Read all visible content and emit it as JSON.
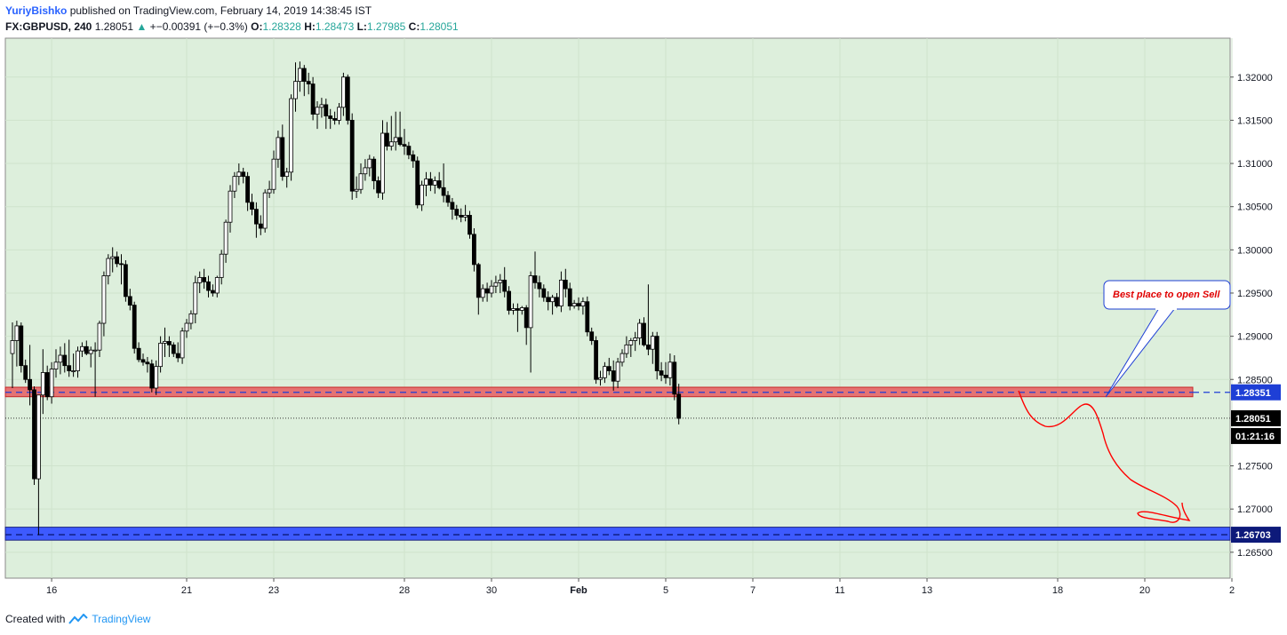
{
  "header": {
    "author": "YuriyBishko",
    "published_text": "published on TradingView.com, February 14, 2019 14:38:45 IST",
    "symbol": "FX:GBPUSD, 240",
    "last": "1.28051",
    "change": "+−0.00391 (+−0.3%)",
    "o_label": "O:",
    "o_val": "1.28328",
    "h_label": "H:",
    "h_val": "1.28473",
    "l_label": "L:",
    "l_val": "1.27985",
    "c_label": "C:",
    "c_val": "1.28051"
  },
  "footer": {
    "created_with": "Created with",
    "brand": "TradingView"
  },
  "colors": {
    "background": "#ddefdc",
    "candle": "#000000",
    "resistance_zone": "#e57373",
    "resistance_line": "#1e3fd6",
    "support_zone": "#3d5afe",
    "support_line": "#0d1a7a",
    "arrow": "#ff0000",
    "callout_text": "#e00000"
  },
  "chart_data": {
    "type": "candlestick",
    "symbol": "GBPUSD",
    "timeframe": "240",
    "ylim": [
      1.262,
      1.3245
    ],
    "y_ticks": [
      "1.32000",
      "1.31500",
      "1.31000",
      "1.30500",
      "1.30000",
      "1.29500",
      "1.29000",
      "1.28500",
      "1.27500",
      "1.27000",
      "1.26500"
    ],
    "y_tick_values": [
      1.32,
      1.315,
      1.31,
      1.305,
      1.3,
      1.295,
      1.29,
      1.285,
      1.275,
      1.27,
      1.265
    ],
    "x_ticks": [
      "16",
      "21",
      "23",
      "28",
      "30",
      "Feb",
      "5",
      "7",
      "11",
      "13",
      "18",
      "20",
      "2"
    ],
    "x_tick_index": [
      9,
      40,
      60,
      90,
      110,
      130,
      150,
      170,
      190,
      210,
      240,
      260,
      280
    ],
    "price_labels": {
      "resistance": "1.28351",
      "last": "1.28051",
      "countdown": "01:21:16",
      "support": "1.26703"
    },
    "resistance_zone": [
      1.283,
      1.2841
    ],
    "resistance_level": 1.28351,
    "support_zone": [
      1.2664,
      1.2679
    ],
    "support_level": 1.26703,
    "last_price": 1.28051,
    "annotation": "Best place to open Sell",
    "candles": [
      [
        1.288,
        1.2916,
        1.284,
        1.2895
      ],
      [
        1.2895,
        1.2918,
        1.2865,
        1.2912
      ],
      [
        1.2912,
        1.2916,
        1.2858,
        1.2866
      ],
      [
        1.2866,
        1.2873,
        1.2846,
        1.285
      ],
      [
        1.285,
        1.289,
        1.282,
        1.2838
      ],
      [
        1.2838,
        1.2842,
        1.2728,
        1.2735
      ],
      [
        1.2735,
        1.2832,
        1.267,
        1.2832
      ],
      [
        1.2832,
        1.2885,
        1.281,
        1.2858
      ],
      [
        1.2858,
        1.2866,
        1.2826,
        1.283
      ],
      [
        1.283,
        1.287,
        1.2822,
        1.2862
      ],
      [
        1.2862,
        1.2885,
        1.2852,
        1.287
      ],
      [
        1.287,
        1.2888,
        1.2856,
        1.2878
      ],
      [
        1.2878,
        1.2892,
        1.2858,
        1.2866
      ],
      [
        1.2866,
        1.2896,
        1.2853,
        1.286
      ],
      [
        1.286,
        1.288,
        1.2853,
        1.286
      ],
      [
        1.286,
        1.2888,
        1.2852,
        1.2883
      ],
      [
        1.2883,
        1.2893,
        1.2876,
        1.2888
      ],
      [
        1.2888,
        1.2895,
        1.2878,
        1.288
      ],
      [
        1.288,
        1.2888,
        1.2864,
        1.2884
      ],
      [
        1.2884,
        1.2893,
        1.283,
        1.2884
      ],
      [
        1.2884,
        1.2918,
        1.2876,
        1.2915
      ],
      [
        1.2915,
        1.2975,
        1.29,
        1.297
      ],
      [
        1.297,
        1.2995,
        1.296,
        1.299
      ],
      [
        1.299,
        1.3003,
        1.2974,
        1.2992
      ],
      [
        1.2992,
        1.2998,
        1.298,
        1.2984
      ],
      [
        1.2984,
        1.2995,
        1.296,
        1.2983
      ],
      [
        1.2983,
        1.2988,
        1.294,
        1.2946
      ],
      [
        1.2946,
        1.2955,
        1.293,
        1.2936
      ],
      [
        1.2936,
        1.294,
        1.288,
        1.2886
      ],
      [
        1.2886,
        1.2893,
        1.287,
        1.2873
      ],
      [
        1.2873,
        1.288,
        1.2866,
        1.287
      ],
      [
        1.287,
        1.2876,
        1.2858,
        1.2868
      ],
      [
        1.2868,
        1.2873,
        1.2835,
        1.284
      ],
      [
        1.284,
        1.2872,
        1.2832,
        1.2865
      ],
      [
        1.2865,
        1.29,
        1.2858,
        1.2892
      ],
      [
        1.2892,
        1.291,
        1.2876,
        1.2894
      ],
      [
        1.2894,
        1.29,
        1.2876,
        1.289
      ],
      [
        1.289,
        1.2893,
        1.2876,
        1.288
      ],
      [
        1.288,
        1.2893,
        1.287,
        1.2875
      ],
      [
        1.2875,
        1.291,
        1.2868,
        1.2906
      ],
      [
        1.2906,
        1.292,
        1.2898,
        1.2915
      ],
      [
        1.2915,
        1.293,
        1.2908,
        1.2926
      ],
      [
        1.2926,
        1.297,
        1.2915,
        1.2962
      ],
      [
        1.2962,
        1.2975,
        1.295,
        1.2968
      ],
      [
        1.2968,
        1.2978,
        1.2955,
        1.2963
      ],
      [
        1.2963,
        1.297,
        1.2945,
        1.2953
      ],
      [
        1.2953,
        1.296,
        1.2946,
        1.295
      ],
      [
        1.295,
        1.297,
        1.2945,
        1.2968
      ],
      [
        1.2968,
        1.3,
        1.296,
        1.2995
      ],
      [
        1.2995,
        1.3035,
        1.2985,
        1.3032
      ],
      [
        1.3032,
        1.3075,
        1.302,
        1.3068
      ],
      [
        1.3068,
        1.309,
        1.306,
        1.3085
      ],
      [
        1.3085,
        1.31,
        1.3075,
        1.309
      ],
      [
        1.309,
        1.3095,
        1.3077,
        1.3085
      ],
      [
        1.3085,
        1.309,
        1.3045,
        1.3055
      ],
      [
        1.3055,
        1.3065,
        1.304,
        1.3047
      ],
      [
        1.3047,
        1.3055,
        1.3014,
        1.303
      ],
      [
        1.303,
        1.304,
        1.3017,
        1.3025
      ],
      [
        1.3025,
        1.307,
        1.302,
        1.3066
      ],
      [
        1.3066,
        1.308,
        1.306,
        1.307
      ],
      [
        1.307,
        1.3115,
        1.3065,
        1.3105
      ],
      [
        1.3105,
        1.3138,
        1.3095,
        1.313
      ],
      [
        1.313,
        1.3145,
        1.308,
        1.3085
      ],
      [
        1.3085,
        1.3095,
        1.3072,
        1.309
      ],
      [
        1.309,
        1.318,
        1.308,
        1.3175
      ],
      [
        1.3175,
        1.3217,
        1.316,
        1.3195
      ],
      [
        1.3195,
        1.3218,
        1.3183,
        1.321
      ],
      [
        1.321,
        1.3214,
        1.3178,
        1.3195
      ],
      [
        1.3195,
        1.3205,
        1.318,
        1.3192
      ],
      [
        1.3192,
        1.32,
        1.315,
        1.3157
      ],
      [
        1.3157,
        1.3172,
        1.314,
        1.3165
      ],
      [
        1.3165,
        1.3176,
        1.3153,
        1.3168
      ],
      [
        1.3168,
        1.3175,
        1.314,
        1.3155
      ],
      [
        1.3155,
        1.3163,
        1.314,
        1.3152
      ],
      [
        1.3152,
        1.316,
        1.3145,
        1.315
      ],
      [
        1.315,
        1.317,
        1.3145,
        1.3165
      ],
      [
        1.3165,
        1.3205,
        1.3155,
        1.32
      ],
      [
        1.32,
        1.3203,
        1.3145,
        1.315
      ],
      [
        1.315,
        1.3158,
        1.3058,
        1.3068
      ],
      [
        1.3068,
        1.3085,
        1.306,
        1.307
      ],
      [
        1.307,
        1.31,
        1.3065,
        1.3088
      ],
      [
        1.3088,
        1.3105,
        1.308,
        1.3095
      ],
      [
        1.3095,
        1.311,
        1.3085,
        1.3105
      ],
      [
        1.3105,
        1.3108,
        1.307,
        1.308
      ],
      [
        1.308,
        1.3085,
        1.306,
        1.3066
      ],
      [
        1.3066,
        1.315,
        1.3058,
        1.3135
      ],
      [
        1.3135,
        1.3148,
        1.3115,
        1.312
      ],
      [
        1.312,
        1.3155,
        1.3115,
        1.3125
      ],
      [
        1.3125,
        1.316,
        1.3115,
        1.313
      ],
      [
        1.313,
        1.316,
        1.312,
        1.3122
      ],
      [
        1.3122,
        1.314,
        1.311,
        1.312
      ],
      [
        1.312,
        1.3125,
        1.3105,
        1.311
      ],
      [
        1.311,
        1.3115,
        1.3095,
        1.3103
      ],
      [
        1.3103,
        1.3108,
        1.3048,
        1.3052
      ],
      [
        1.3052,
        1.308,
        1.3045,
        1.3075
      ],
      [
        1.3075,
        1.309,
        1.3062,
        1.3082
      ],
      [
        1.3082,
        1.309,
        1.3068,
        1.3075
      ],
      [
        1.3075,
        1.3085,
        1.3065,
        1.308
      ],
      [
        1.308,
        1.309,
        1.307,
        1.3072
      ],
      [
        1.3072,
        1.31,
        1.3055,
        1.3063
      ],
      [
        1.3063,
        1.3068,
        1.305,
        1.3055
      ],
      [
        1.3055,
        1.306,
        1.3035,
        1.3047
      ],
      [
        1.3047,
        1.3052,
        1.3035,
        1.304
      ],
      [
        1.304,
        1.3048,
        1.3032,
        1.3038
      ],
      [
        1.3038,
        1.3052,
        1.3033,
        1.304
      ],
      [
        1.304,
        1.3045,
        1.3013,
        1.3018
      ],
      [
        1.3018,
        1.3025,
        1.2975,
        1.2983
      ],
      [
        1.2983,
        1.2985,
        1.2925,
        1.2945
      ],
      [
        1.2945,
        1.296,
        1.294,
        1.2955
      ],
      [
        1.2955,
        1.2962,
        1.294,
        1.295
      ],
      [
        1.295,
        1.2965,
        1.2945,
        1.2958
      ],
      [
        1.2958,
        1.297,
        1.295,
        1.2962
      ],
      [
        1.2962,
        1.2972,
        1.295,
        1.2965
      ],
      [
        1.2965,
        1.298,
        1.2945,
        1.2952
      ],
      [
        1.2952,
        1.2958,
        1.2925,
        1.293
      ],
      [
        1.293,
        1.2938,
        1.2925,
        1.2932
      ],
      [
        1.2932,
        1.2938,
        1.2905,
        1.293
      ],
      [
        1.293,
        1.2935,
        1.2925,
        1.2933
      ],
      [
        1.2933,
        1.2936,
        1.289,
        1.291
      ],
      [
        1.291,
        1.2975,
        1.2858,
        1.297
      ],
      [
        1.297,
        1.2998,
        1.2955,
        1.2962
      ],
      [
        1.2962,
        1.297,
        1.2945,
        1.2955
      ],
      [
        1.2955,
        1.296,
        1.294,
        1.2945
      ],
      [
        1.2945,
        1.2952,
        1.293,
        1.294
      ],
      [
        1.294,
        1.2948,
        1.2925,
        1.2945
      ],
      [
        1.2945,
        1.295,
        1.2933,
        1.2935
      ],
      [
        1.2935,
        1.2975,
        1.2928,
        1.2965
      ],
      [
        1.2965,
        1.2978,
        1.2945,
        1.2955
      ],
      [
        1.2955,
        1.2962,
        1.293,
        1.2935
      ],
      [
        1.2935,
        1.2942,
        1.2932,
        1.2938
      ],
      [
        1.2938,
        1.2945,
        1.293,
        1.2935
      ],
      [
        1.2935,
        1.2945,
        1.2925,
        1.294
      ],
      [
        1.294,
        1.2946,
        1.29,
        1.2905
      ],
      [
        1.2905,
        1.291,
        1.289,
        1.2895
      ],
      [
        1.2895,
        1.29,
        1.2845,
        1.285
      ],
      [
        1.285,
        1.286,
        1.2843,
        1.2852
      ],
      [
        1.2852,
        1.287,
        1.2846,
        1.2865
      ],
      [
        1.2865,
        1.2875,
        1.2855,
        1.286
      ],
      [
        1.286,
        1.2872,
        1.2837,
        1.2848
      ],
      [
        1.2848,
        1.2875,
        1.284,
        1.287
      ],
      [
        1.287,
        1.2885,
        1.2865,
        1.288
      ],
      [
        1.288,
        1.29,
        1.2875,
        1.289
      ],
      [
        1.289,
        1.2898,
        1.2876,
        1.2895
      ],
      [
        1.2895,
        1.2905,
        1.2883,
        1.2898
      ],
      [
        1.2898,
        1.292,
        1.289,
        1.2915
      ],
      [
        1.2915,
        1.2922,
        1.2888,
        1.289
      ],
      [
        1.289,
        1.296,
        1.2878,
        1.2885
      ],
      [
        1.2885,
        1.2905,
        1.2868,
        1.29
      ],
      [
        1.29,
        1.2905,
        1.285,
        1.286
      ],
      [
        1.286,
        1.287,
        1.2848,
        1.2855
      ],
      [
        1.2855,
        1.287,
        1.2845,
        1.2852
      ],
      [
        1.2852,
        1.288,
        1.2843,
        1.287
      ],
      [
        1.287,
        1.2878,
        1.2826,
        1.2833
      ],
      [
        1.2833,
        1.2845,
        1.2798,
        1.2805
      ]
    ]
  }
}
